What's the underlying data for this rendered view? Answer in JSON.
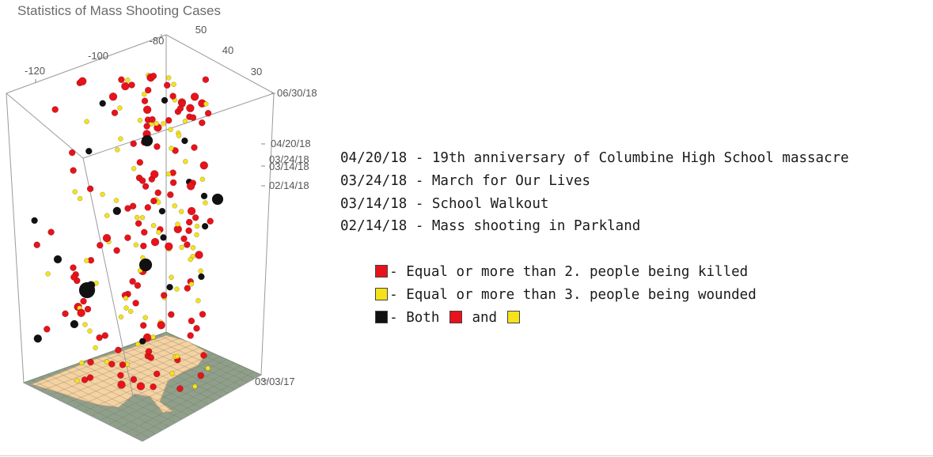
{
  "chart_data": {
    "type": "scatter",
    "dimensions": "3d",
    "title": "Statistics of Mass Shooting Cases",
    "x_axis": {
      "ticks": [
        "-120",
        "-100",
        "-80"
      ],
      "range": [
        -125,
        -67
      ]
    },
    "y_axis": {
      "ticks": [
        "50",
        "40",
        "30"
      ],
      "range": [
        25,
        50
      ]
    },
    "z_axis": {
      "ticks": [
        "03/03/17",
        "02/14/18",
        "03/14/18",
        "03/24/18",
        "04/20/18",
        "06/30/18"
      ],
      "range": [
        "2017-03-03",
        "2018-06-30"
      ]
    },
    "base_map": "United States",
    "annotations": [
      "04/20/18 - 19th anniversary of Columbine High School massacre",
      "03/24/18 - March for Our Lives",
      "03/14/18 - School Walkout",
      "02/14/18 - Mass shooting in Parkland"
    ],
    "legend": [
      {
        "color": "#e8121b",
        "label": "- Equal or more than 2. people being killed"
      },
      {
        "color": "#f5e21a",
        "label": "- Equal or more than 3. people being wounded"
      },
      {
        "color": "#111111",
        "label_prefix": "- Both",
        "label_mid": "and"
      }
    ]
  }
}
